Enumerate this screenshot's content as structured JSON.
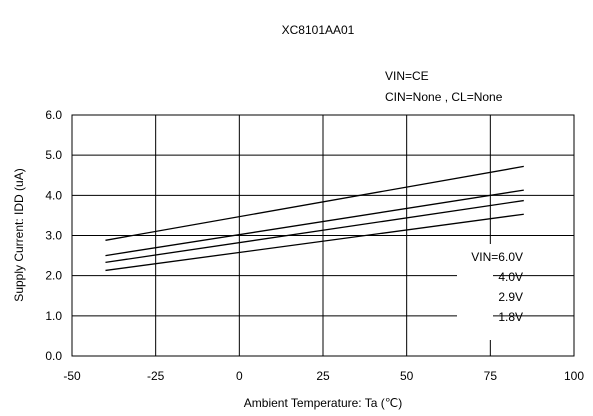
{
  "chart_data": {
    "type": "line",
    "title": "XC8101AA01",
    "conditions": [
      "VIN=CE",
      "CIN=None , CL=None"
    ],
    "xlabel": "Ambient Temperature: Ta (℃)",
    "ylabel": "Supply Current: IDD (uA)",
    "xlim": [
      -50,
      100
    ],
    "ylim": [
      0,
      6
    ],
    "x_ticks": [
      "-50",
      "-25",
      "0",
      "25",
      "50",
      "75",
      "100"
    ],
    "y_ticks": [
      "0.0",
      "1.0",
      "2.0",
      "3.0",
      "4.0",
      "5.0",
      "6.0"
    ],
    "grid": true,
    "legend_position": "lower-right",
    "legend_labels": [
      "VIN=6.0V",
      "4.0V",
      "2.9V",
      "1.8V"
    ],
    "series": [
      {
        "name": "VIN=6.0V",
        "x": [
          -40,
          85
        ],
        "y": [
          2.88,
          4.72
        ]
      },
      {
        "name": "4.0V",
        "x": [
          -40,
          85
        ],
        "y": [
          2.5,
          4.13
        ]
      },
      {
        "name": "2.9V",
        "x": [
          -40,
          85
        ],
        "y": [
          2.33,
          3.87
        ]
      },
      {
        "name": "1.8V",
        "x": [
          -40,
          85
        ],
        "y": [
          2.13,
          3.53
        ]
      }
    ],
    "colors": {
      "line": "#000000",
      "grid": "#000000",
      "background": "#ffffff"
    }
  }
}
